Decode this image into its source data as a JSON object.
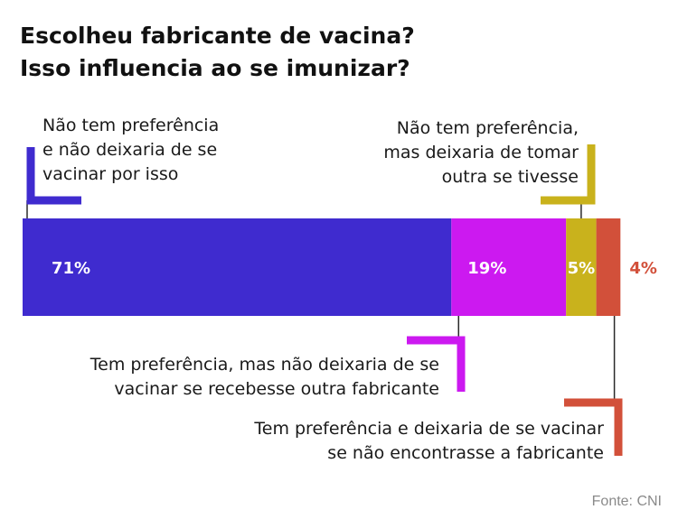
{
  "title_lines": [
    "Escolheu fabricante de vacina?",
    "Isso influencia ao se imunizar?"
  ],
  "source": "Fonte: CNI",
  "chart_data": {
    "type": "bar",
    "orientation": "horizontal-stacked",
    "total": 100,
    "segments": [
      {
        "value": 71,
        "label": "71%",
        "color": "#3f2bcf",
        "label_color": "#ffffff",
        "annotation_lines": [
          "Não tem preferência",
          "e não deixaria de se",
          "vacinar por isso"
        ]
      },
      {
        "value": 19,
        "label": "19%",
        "color": "#cc19f0",
        "label_color": "#ffffff",
        "annotation_lines": [
          "Tem preferência, mas não deixaria de se",
          "vacinar se recebesse outra fabricante"
        ]
      },
      {
        "value": 5,
        "label": "5%",
        "color": "#c9b21c",
        "label_color": "#ffffff",
        "annotation_lines": [
          "Não tem preferência,",
          "mas deixaria de tomar",
          "outra se tivesse"
        ]
      },
      {
        "value": 4,
        "label": "4%",
        "color": "#d2503a",
        "label_color": "#d2503a",
        "annotation_lines": [
          "Tem preferência e deixaria de se vacinar",
          "se não encontrasse a fabricante"
        ]
      }
    ]
  }
}
